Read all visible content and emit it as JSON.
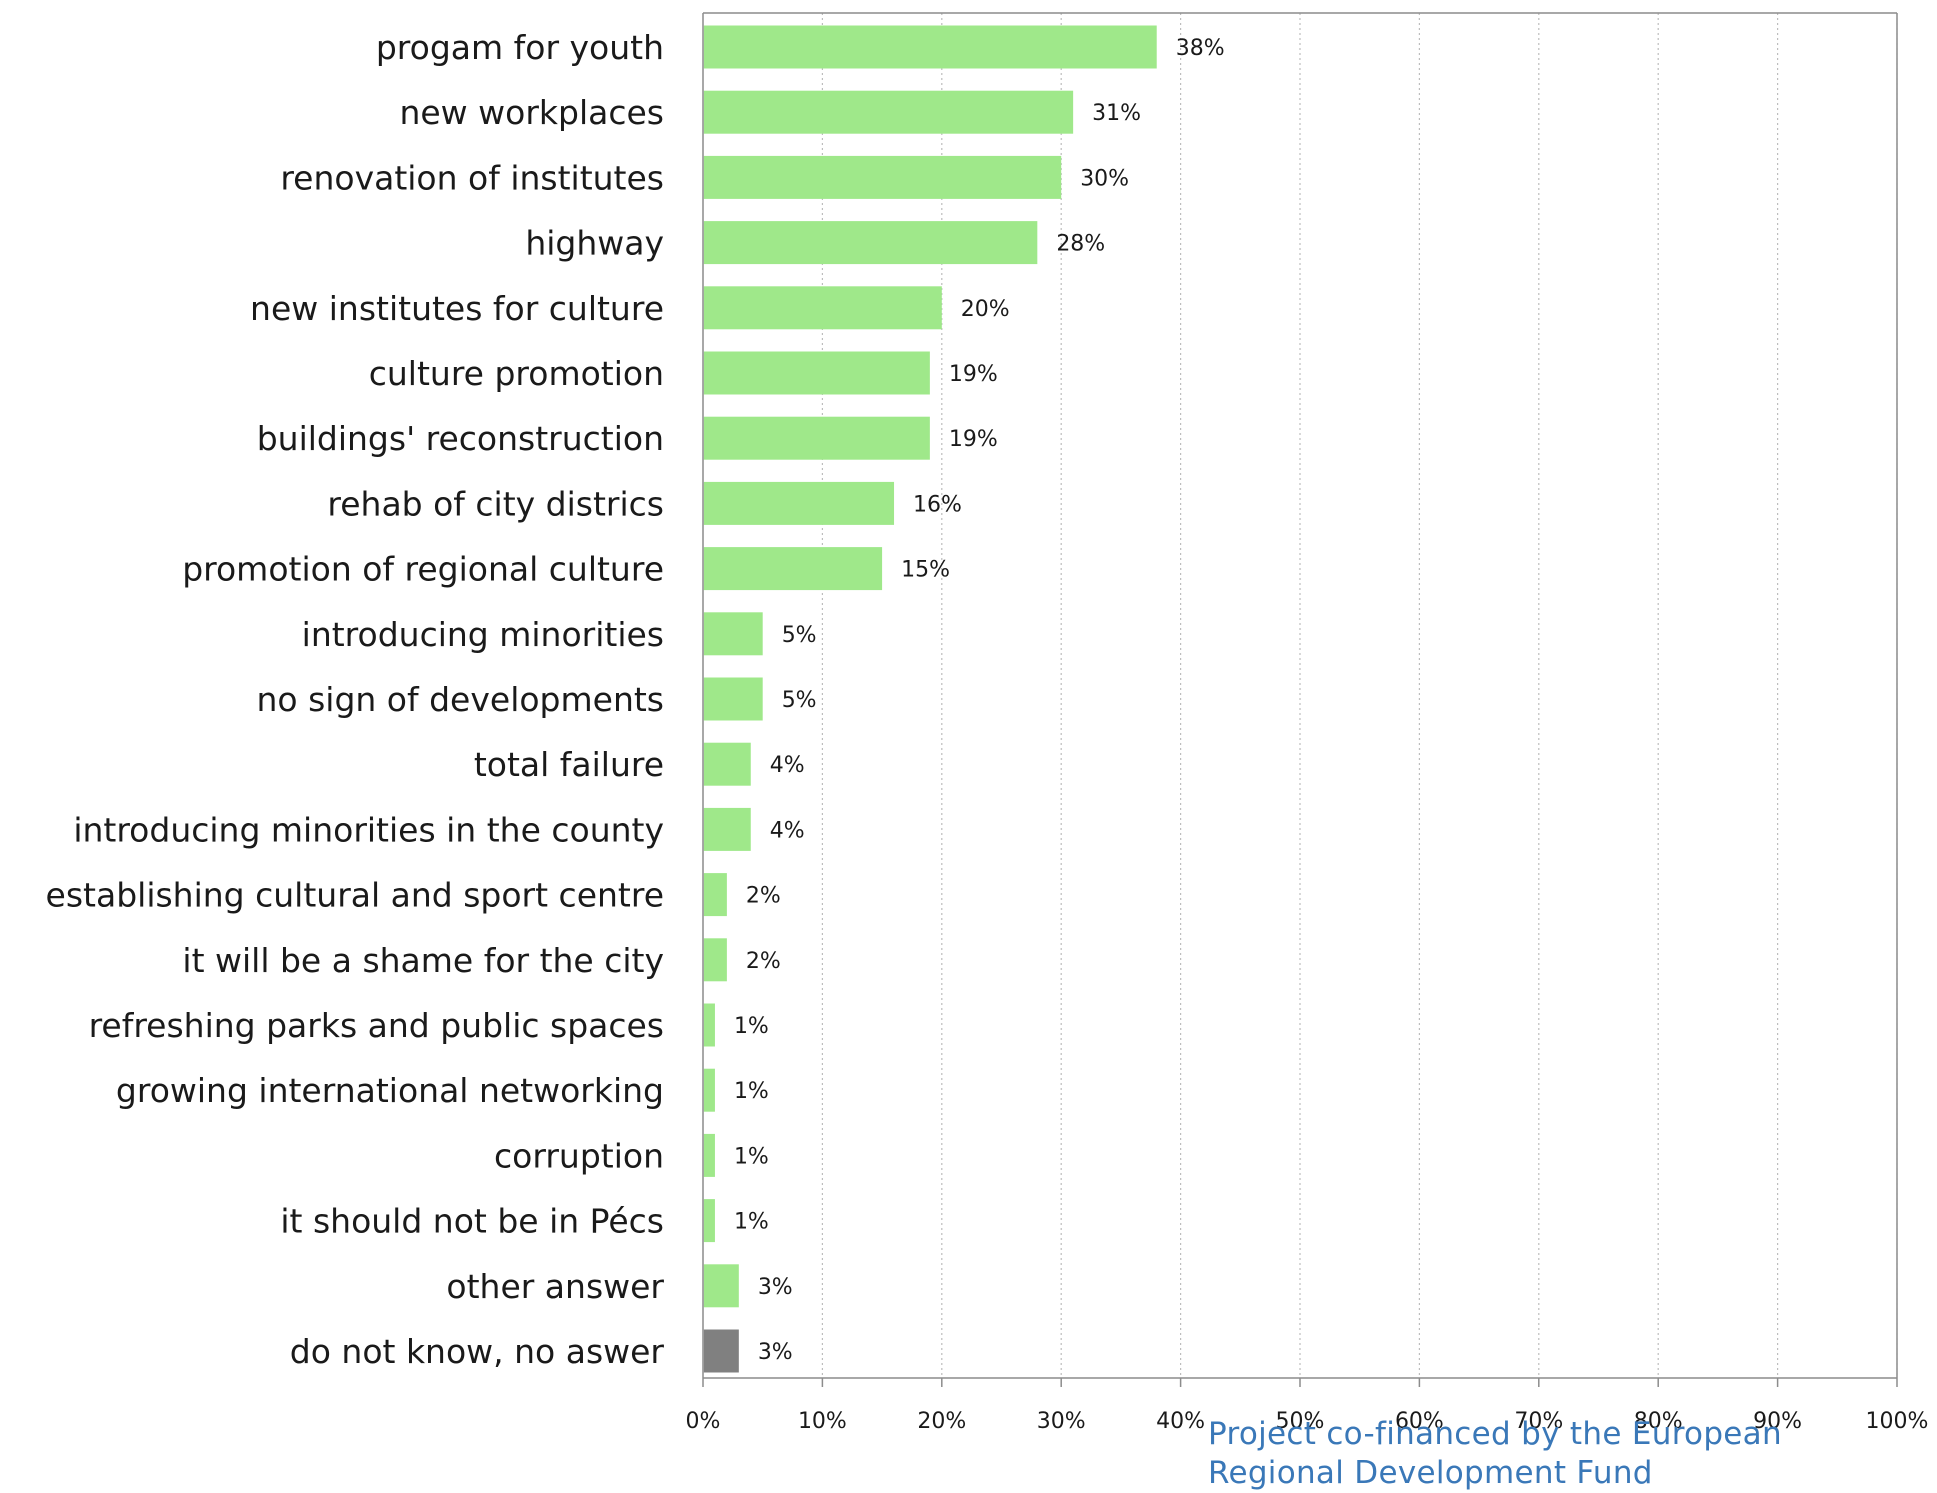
{
  "chart_data": {
    "type": "bar",
    "orientation": "horizontal",
    "categories": [
      "progam for youth",
      "new workplaces",
      "renovation of institutes",
      "highway",
      "new institutes for culture",
      "culture promotion",
      "buildings' reconstruction",
      "rehab of city districs",
      "promotion of regional culture",
      "introducing minorities",
      "no sign of developments",
      "total failure",
      "introducing minorities in the county",
      "establishing cultural and sport centre",
      "it will be a shame for the city",
      "refreshing parks and public spaces",
      "growing international networking",
      "corruption",
      "it should not be in Pécs",
      "other answer",
      "do not know, no aswer"
    ],
    "values": [
      38,
      31,
      30,
      28,
      20,
      19,
      19,
      16,
      15,
      5,
      5,
      4,
      4,
      2,
      2,
      1,
      1,
      1,
      1,
      3,
      3
    ],
    "data_labels": [
      "38%",
      "31%",
      "30%",
      "28%",
      "20%",
      "19%",
      "19%",
      "16%",
      "15%",
      "5%",
      "5%",
      "4%",
      "4%",
      "2%",
      "2%",
      "1%",
      "1%",
      "1%",
      "1%",
      "3%",
      "3%"
    ],
    "bar_colors": [
      "#9fe88a",
      "#9fe88a",
      "#9fe88a",
      "#9fe88a",
      "#9fe88a",
      "#9fe88a",
      "#9fe88a",
      "#9fe88a",
      "#9fe88a",
      "#9fe88a",
      "#9fe88a",
      "#9fe88a",
      "#9fe88a",
      "#9fe88a",
      "#9fe88a",
      "#9fe88a",
      "#9fe88a",
      "#9fe88a",
      "#9fe88a",
      "#9fe88a",
      "#808080"
    ],
    "xlim": [
      0,
      100
    ],
    "x_ticks": [
      "0%",
      "10%",
      "20%",
      "30%",
      "40%",
      "50%",
      "60%",
      "70%",
      "80%",
      "90%",
      "100%"
    ],
    "grid": "vertical dotted",
    "title": "",
    "xlabel": "",
    "ylabel": ""
  },
  "footer": {
    "line1": "Project co-financed by the European",
    "line2": "Regional Development Fund"
  },
  "colors": {
    "bar": "#9fe88a",
    "bar_no_answer": "#808080",
    "footer_text": "#3a78b8",
    "axis": "#8c8c8c"
  }
}
